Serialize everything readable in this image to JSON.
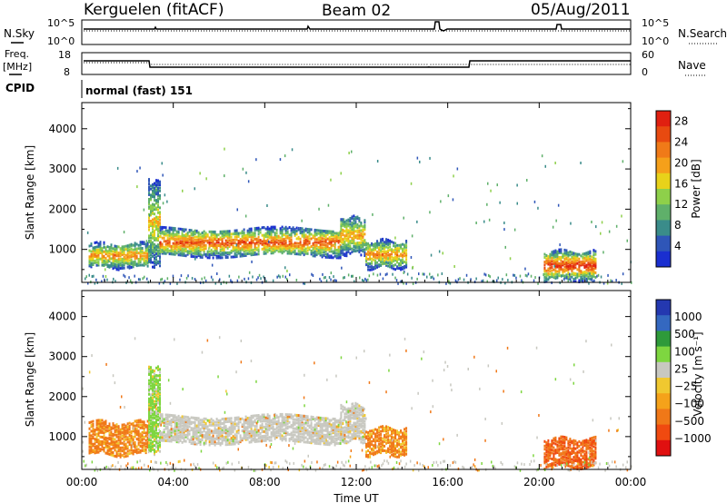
{
  "header": {
    "station": "Kerguelen (fitACF)",
    "beam": "Beam 02",
    "date": "05/Aug/2011"
  },
  "status_panels": {
    "nsky_label": "N.Sky",
    "nsky_ticks": [
      "10^5",
      "10^0"
    ],
    "nsearch_label": "N.Search",
    "nsearch_ticks": [
      "10^5",
      "10^0"
    ],
    "freq_label_line1": "Freq.",
    "freq_label_line2": "[MHz]",
    "freq_ticks": [
      "18",
      "8"
    ],
    "nave_label": "Nave",
    "nave_ticks": [
      "60",
      "0"
    ],
    "cpid_label": "CPID",
    "cpid_text": "normal (fast) 151"
  },
  "colors": {
    "power_scale": [
      "#1a2fd0",
      "#2f56b8",
      "#3a8c8a",
      "#5fb06a",
      "#8ed04a",
      "#e8d21a",
      "#f5a01a",
      "#f07a18",
      "#e84a10",
      "#e02010"
    ],
    "velocity_scale": [
      "#e01010",
      "#f04a10",
      "#f07818",
      "#f5a21a",
      "#f0c830",
      "#c8c8c0",
      "#7ed640",
      "#2e9a3a",
      "#3468c0",
      "#2438b0"
    ],
    "ground_scatter": "#c8c8c0"
  },
  "chart_data": [
    {
      "type": "heatmap",
      "name": "power",
      "ylabel": "Slant Range [km]",
      "xlabel": "",
      "x_ticks": [
        "00:00",
        "04:00",
        "08:00",
        "12:00",
        "16:00",
        "20:00",
        "00:00"
      ],
      "x_range_hours": [
        0,
        24
      ],
      "y_ticks": [
        "1000",
        "2000",
        "3000",
        "4000"
      ],
      "ylim": [
        180,
        4650
      ],
      "colorbar": {
        "label": "Power [dB]",
        "ticks": [
          "4",
          "8",
          "12",
          "16",
          "20",
          "24",
          "28"
        ],
        "range": [
          0,
          30
        ]
      },
      "echo_regions": [
        {
          "t_start": 0.3,
          "t_end": 2.9,
          "range_low": 550,
          "range_high": 1150,
          "peak_db": 22
        },
        {
          "t_start": 2.9,
          "t_end": 3.4,
          "range_low": 600,
          "range_high": 2700,
          "peak_db": 18
        },
        {
          "t_start": 3.4,
          "t_end": 11.3,
          "range_low": 850,
          "range_high": 1500,
          "peak_db": 26
        },
        {
          "t_start": 11.3,
          "t_end": 12.4,
          "range_low": 900,
          "range_high": 1800,
          "peak_db": 20
        },
        {
          "t_start": 12.4,
          "t_end": 14.2,
          "range_low": 550,
          "range_high": 1200,
          "peak_db": 22
        },
        {
          "t_start": 20.2,
          "t_end": 22.5,
          "range_low": 250,
          "range_high": 950,
          "peak_db": 28
        }
      ]
    },
    {
      "type": "heatmap",
      "name": "velocity",
      "ylabel": "Slant Range [km]",
      "xlabel": "Time UT",
      "x_ticks": [
        "00:00",
        "04:00",
        "08:00",
        "12:00",
        "16:00",
        "20:00",
        "00:00"
      ],
      "x_range_hours": [
        0,
        24
      ],
      "y_ticks": [
        "1000",
        "2000",
        "3000",
        "4000"
      ],
      "ylim": [
        180,
        4650
      ],
      "colorbar": {
        "label": "Velocity [m s⁻¹]",
        "ticks": [
          "1000",
          "500",
          "100",
          "25",
          "−25",
          "−100",
          "−500",
          "−1000"
        ]
      },
      "echo_regions": [
        {
          "t_start": 0.3,
          "t_end": 2.9,
          "range_low": 550,
          "range_high": 1350,
          "velocity": -100
        },
        {
          "t_start": 2.9,
          "t_end": 3.4,
          "range_low": 600,
          "range_high": 2700,
          "velocity": 100
        },
        {
          "t_start": 3.4,
          "t_end": 11.3,
          "range_low": 850,
          "range_high": 1500,
          "velocity": 0,
          "ground_scatter": true
        },
        {
          "t_start": 11.3,
          "t_end": 12.4,
          "range_low": 900,
          "range_high": 1800,
          "velocity": 0,
          "ground_scatter": true
        },
        {
          "t_start": 12.4,
          "t_end": 14.2,
          "range_low": 550,
          "range_high": 1200,
          "velocity": -100
        },
        {
          "t_start": 20.2,
          "t_end": 22.5,
          "range_low": 250,
          "range_high": 950,
          "velocity": -300
        }
      ]
    }
  ]
}
